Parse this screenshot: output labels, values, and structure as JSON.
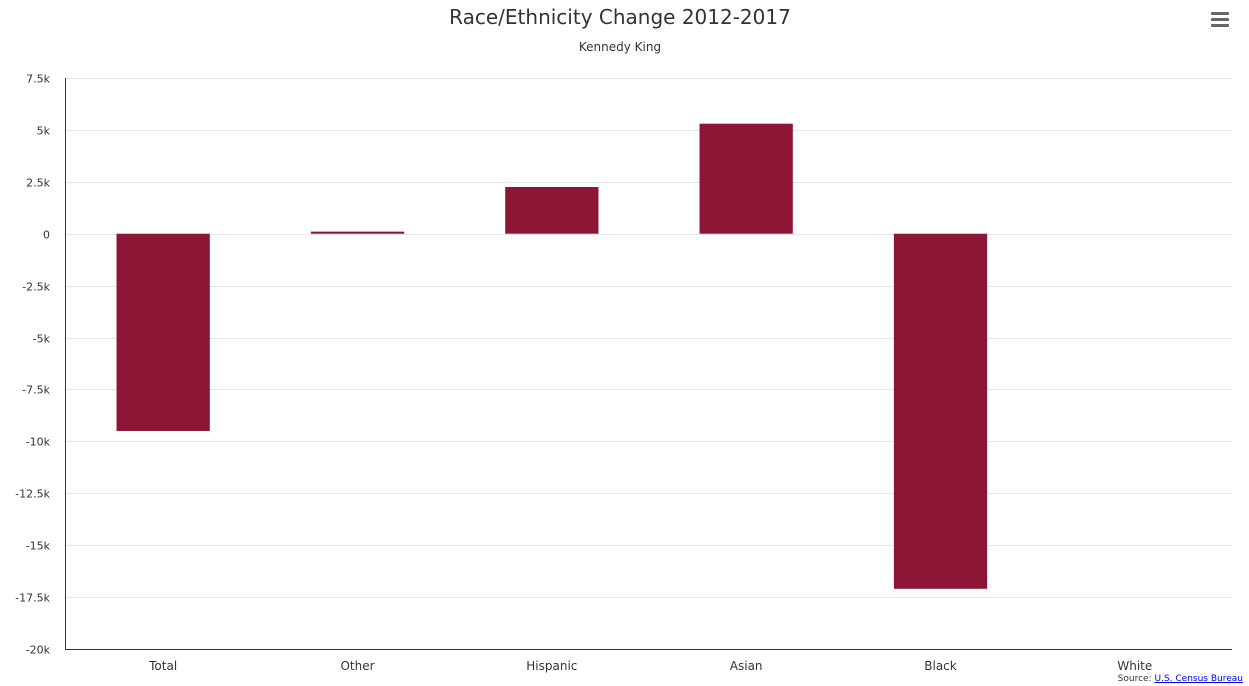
{
  "colors": {
    "bar": "#8d1535"
  },
  "menu": {
    "icon": "hamburger-icon"
  },
  "credits": {
    "prefix": "Source:",
    "link_text": "U.S. Census Bureau"
  },
  "chart_data": {
    "type": "bar",
    "title": "Race/Ethnicity Change 2012-2017",
    "subtitle": "Kennedy King",
    "categories": [
      "Total",
      "Other",
      "Hispanic",
      "Asian",
      "Black",
      "White"
    ],
    "values": [
      -9500,
      100,
      2250,
      5300,
      -17100,
      0
    ],
    "ylim": [
      -20000,
      7500
    ],
    "ytick_values": [
      7500,
      5000,
      2500,
      0,
      -2500,
      -5000,
      -7500,
      -10000,
      -12500,
      -15000,
      -17500,
      -20000
    ],
    "ytick_labels": [
      "7.5k",
      "5k",
      "2.5k",
      "0",
      "-2.5k",
      "-5k",
      "-7.5k",
      "-10k",
      "-12.5k",
      "-15k",
      "-17.5k",
      "-20k"
    ],
    "grid": true,
    "legend": false
  }
}
